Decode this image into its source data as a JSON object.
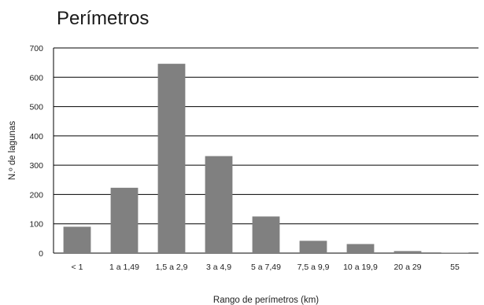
{
  "chart_data": {
    "type": "bar",
    "title": "Perímetros",
    "xlabel": "Rango de perímetros (km)",
    "ylabel": "N.º de lagunas",
    "categories": [
      "< 1",
      "1 a 1,49",
      "1,5 a 2,9",
      "3 a 4,9",
      "5 a 7,49",
      "7,5 a 9,9",
      "10 a 19,9",
      "20 a 29",
      "55"
    ],
    "values": [
      90,
      223,
      646,
      331,
      125,
      42,
      31,
      7,
      1
    ],
    "ylim": [
      0,
      700
    ],
    "yticks": [
      0,
      100,
      200,
      300,
      400,
      500,
      600,
      700
    ],
    "grid": true,
    "bar_color": "#808080"
  }
}
